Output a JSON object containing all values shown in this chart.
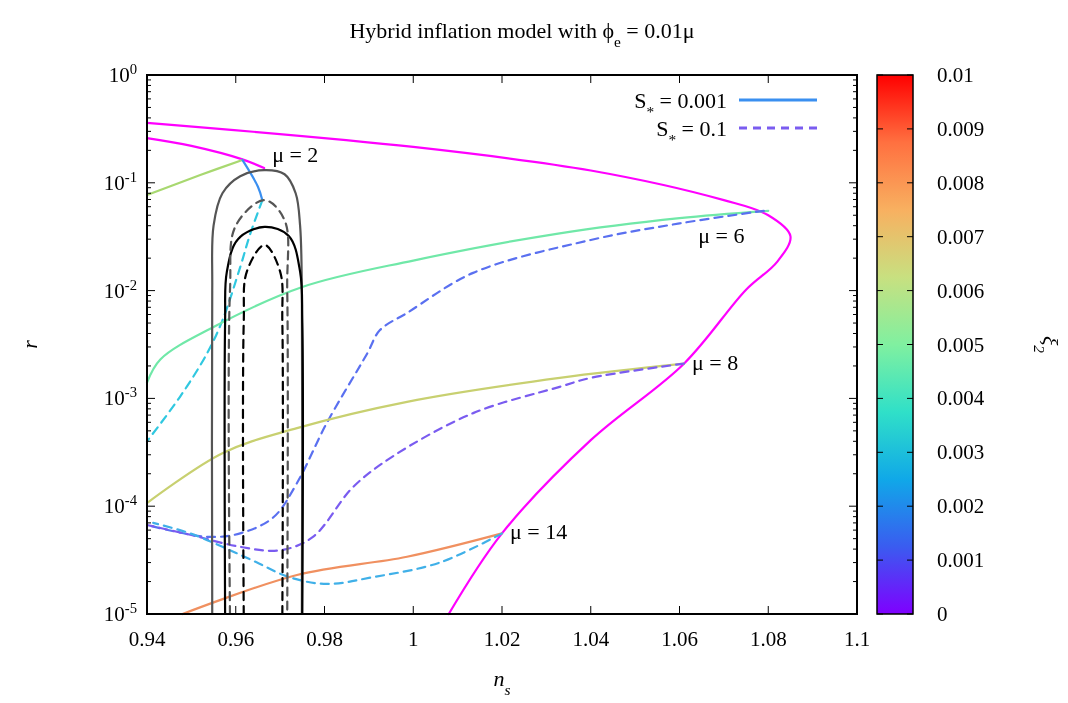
{
  "chart_data": {
    "type": "line",
    "title": "Hybrid inflation model with ϕ$_{e}$ = 0.01μ",
    "xlabel": "n$_{s}$",
    "ylabel": "r",
    "clabel": "ξ$_{2}$",
    "log": "y",
    "xlim": [
      0.94,
      1.1
    ],
    "xticks": [
      0.94,
      0.96,
      0.98,
      1,
      1.02,
      1.04,
      1.06,
      1.08,
      1.1
    ],
    "ylim": [
      1e-05,
      1
    ],
    "yticks": [
      {
        "value": 1e-05,
        "label": "10$^{-5}$"
      },
      {
        "value": 0.0001,
        "label": "10$^{-4}$"
      },
      {
        "value": 0.001,
        "label": "10$^{-3}$"
      },
      {
        "value": 0.01,
        "label": "10$^{-2}$"
      },
      {
        "value": 0.1,
        "label": "10$^{-1}$"
      },
      {
        "value": 1,
        "label": "10$^{0}$"
      }
    ],
    "clim": [
      0,
      0.01
    ],
    "cticks": [
      0,
      0.001,
      0.002,
      0.003,
      0.004,
      0.005,
      0.006,
      0.007,
      0.008,
      0.009,
      0.01
    ],
    "legend": "top right",
    "grid": false,
    "series": [
      {
        "color": "#ff00ff",
        "line_style": "solid",
        "x": [
          0.94,
          1.0,
          1.04,
          1.07,
          1.08,
          1.085,
          1.082,
          1.075,
          1.061,
          1.04,
          1.02,
          1.008
        ],
        "values": [
          0.36,
          0.215,
          0.13,
          0.069,
          0.05,
          0.032,
          0.0185,
          0.0102,
          0.0021,
          0.00041,
          5.6e-05,
          1e-05
        ]
      },
      {
        "color": "#ff00ff",
        "line_style": "solid",
        "x": [
          0.94,
          0.95,
          0.9615,
          0.9664
        ],
        "values": [
          0.26,
          0.22,
          0.165,
          0.137
        ]
      },
      {
        "color": "#a8d870",
        "line_style": "solid",
        "x": [
          0.94,
          0.952,
          0.9615
        ],
        "values": [
          0.077,
          0.118,
          0.163
        ]
      },
      {
        "name": "S$_{*}$ = 0.001",
        "color": "#3a8ff0",
        "line_style": "solid",
        "x": [
          0.9615,
          0.965,
          0.966
        ],
        "values": [
          0.163,
          0.092,
          0.069
        ]
      },
      {
        "color": "#30c8e0",
        "line_style": "dashed",
        "x": [
          0.966,
          0.9633,
          0.961,
          0.957,
          0.9535,
          0.9474,
          0.94
        ],
        "values": [
          0.069,
          0.034,
          0.0165,
          0.0053,
          0.0026,
          0.00103,
          0.0004
        ]
      },
      {
        "color": "#70e8a8",
        "line_style": "solid",
        "x": [
          0.94,
          0.943,
          0.955,
          0.975,
          1.0,
          1.033,
          1.06,
          1.08
        ],
        "values": [
          0.0014,
          0.0023,
          0.0046,
          0.0108,
          0.019,
          0.034,
          0.047,
          0.055
        ]
      },
      {
        "color": "#5a70f0",
        "line_style": "dashed",
        "x": [
          1.079,
          1.06,
          1.04,
          1.0135,
          0.9986,
          0.9925,
          0.9896,
          0.9805,
          0.9738,
          0.9685,
          0.961,
          0.9535,
          0.94
        ],
        "values": [
          0.055,
          0.042,
          0.0295,
          0.0146,
          0.0062,
          0.0043,
          0.0026,
          0.00059,
          0.000164,
          7.9e-05,
          5.6e-05,
          5.2e-05,
          6.7e-05
        ]
      },
      {
        "color": "#c8d070",
        "line_style": "solid",
        "x": [
          0.94,
          0.957,
          0.9738,
          0.9986,
          1.033,
          1.061
        ],
        "values": [
          0.000107,
          0.00031,
          0.00053,
          0.00093,
          0.00155,
          0.0021
        ]
      },
      {
        "name": "S$_{*}$ = 0.1",
        "color": "#7a5cf0",
        "line_style": "dashed",
        "x": [
          1.061,
          1.04,
          1.033,
          1.0135,
          0.9954,
          0.9864,
          0.9774,
          0.97,
          0.961,
          0.95,
          0.94
        ],
        "values": [
          0.0021,
          0.00155,
          0.00128,
          0.00073,
          0.00029,
          0.00015,
          5.2e-05,
          3.9e-05,
          4.2e-05,
          5.4e-05,
          6.7e-05
        ]
      },
      {
        "color": "#f09060",
        "line_style": "solid",
        "x": [
          0.948,
          0.9738,
          0.9986,
          1.02
        ],
        "values": [
          1e-05,
          2.3e-05,
          3.4e-05,
          5.6e-05
        ]
      },
      {
        "color": "#40b0e8",
        "line_style": "dashed",
        "x": [
          1.02,
          1.006,
          0.991,
          0.9805,
          0.972,
          0.9648,
          0.957,
          0.9497,
          0.9414
        ],
        "values": [
          5.6e-05,
          3e-05,
          2.2e-05,
          1.9e-05,
          2.2e-05,
          3e-05,
          4.2e-05,
          5.6e-05,
          7e-05
        ]
      },
      {
        "color": "#555555",
        "line_style": "solid",
        "x": [
          0.9547,
          0.9547,
          0.955,
          0.957,
          0.961,
          0.9664,
          0.971,
          0.9735,
          0.9745,
          0.9749,
          0.9749
        ],
        "values": [
          1e-05,
          0.01,
          0.04,
          0.08,
          0.115,
          0.131,
          0.12,
          0.08,
          0.04,
          0.01,
          1e-05
        ]
      },
      {
        "color": "#000000",
        "line_style": "solid",
        "x": [
          0.9576,
          0.9576,
          0.958,
          0.9605,
          0.9665,
          0.972,
          0.9745,
          0.975,
          0.975
        ],
        "values": [
          1e-05,
          0.005,
          0.015,
          0.03,
          0.039,
          0.032,
          0.015,
          0.005,
          1e-05
        ]
      },
      {
        "color": "#555555",
        "line_style": "dashed",
        "x": [
          0.9587,
          0.9587,
          0.96,
          0.9665,
          0.971,
          0.9716,
          0.9716
        ],
        "values": [
          1e-05,
          0.01,
          0.04,
          0.069,
          0.045,
          0.01,
          1e-05
        ]
      },
      {
        "color": "#000000",
        "line_style": "dashed",
        "x": [
          0.9618,
          0.9618,
          0.9625,
          0.9665,
          0.97,
          0.9705,
          0.9705
        ],
        "values": [
          1e-05,
          0.005,
          0.015,
          0.0265,
          0.015,
          0.005,
          1e-05
        ]
      }
    ],
    "annotations": [
      {
        "text": "μ = 2",
        "x": 0.9664,
        "y": 0.137
      },
      {
        "text": "μ = 6",
        "x": 1.08,
        "y": 0.055
      },
      {
        "text": "μ = 8",
        "x": 1.061,
        "y": 0.0021
      },
      {
        "text": "μ = 14",
        "x": 1.02,
        "y": 5.6e-05
      }
    ]
  }
}
